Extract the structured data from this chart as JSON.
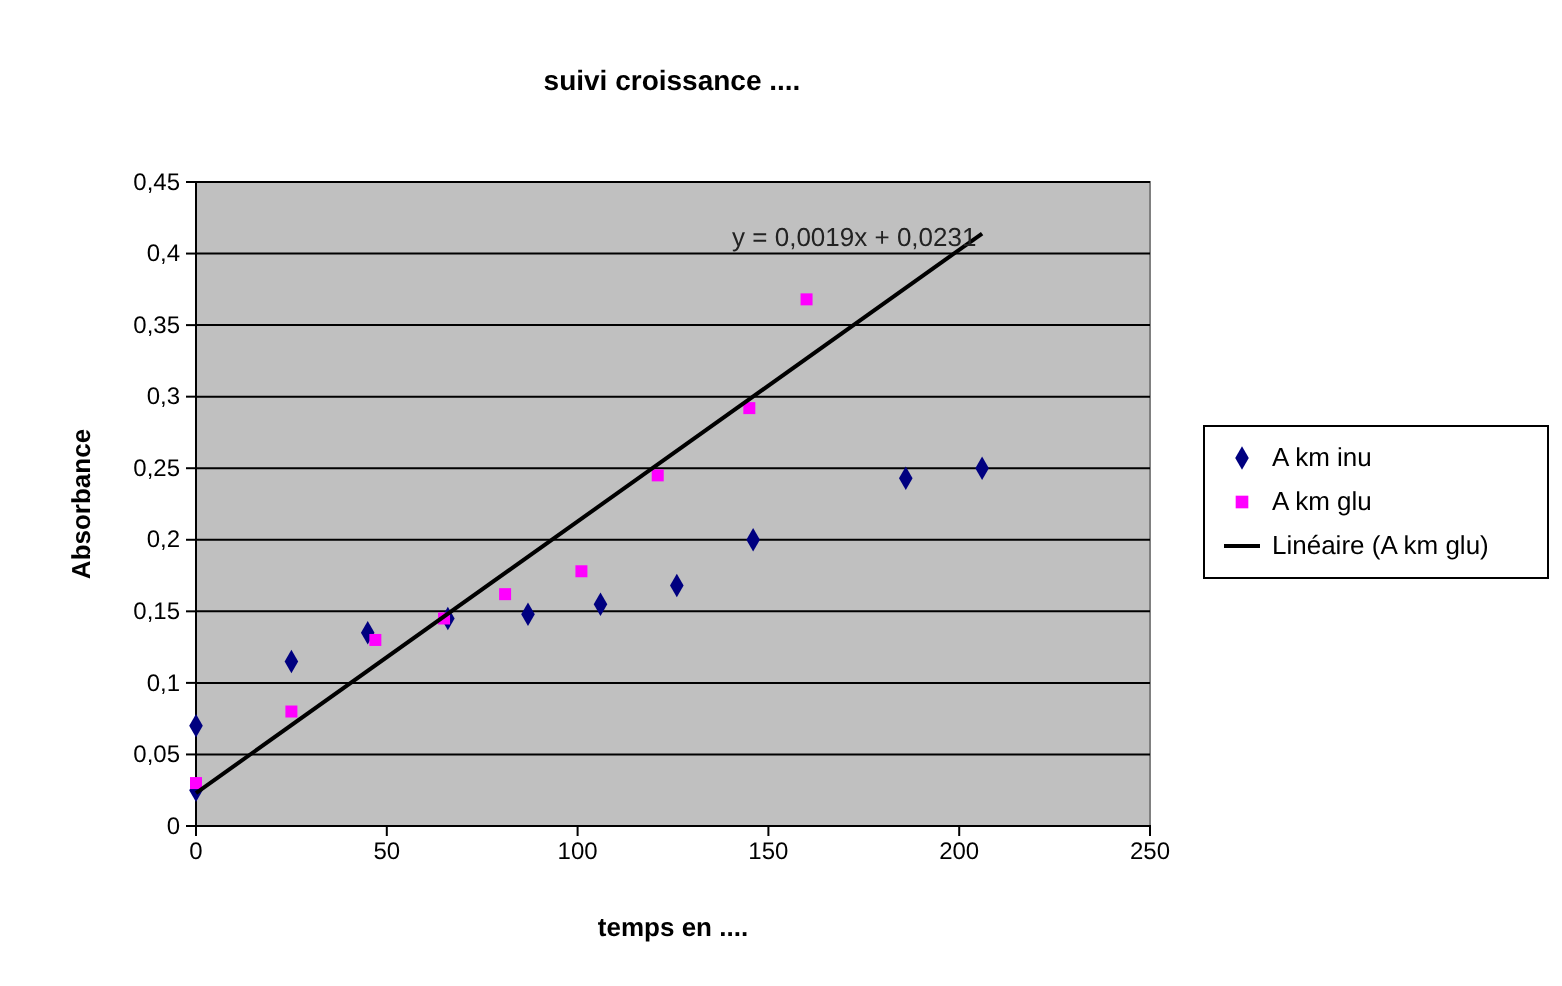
{
  "chart_data": {
    "type": "scatter",
    "title": "suivi croissance ....",
    "xlabel": "temps en ....",
    "ylabel": "Absorbance",
    "xlim": [
      0,
      250
    ],
    "xticks": [
      0,
      50,
      100,
      150,
      200,
      250
    ],
    "ylim": [
      0,
      0.45
    ],
    "yticks": [
      {
        "value": 0,
        "label": "0"
      },
      {
        "value": 0.05,
        "label": "0,05"
      },
      {
        "value": 0.1,
        "label": "0,1"
      },
      {
        "value": 0.15,
        "label": "0,15"
      },
      {
        "value": 0.2,
        "label": "0,2"
      },
      {
        "value": 0.25,
        "label": "0,25"
      },
      {
        "value": 0.3,
        "label": "0,3"
      },
      {
        "value": 0.35,
        "label": "0,35"
      },
      {
        "value": 0.4,
        "label": "0,4"
      },
      {
        "value": 0.45,
        "label": "0,45"
      }
    ],
    "grid": "y",
    "legend": "right",
    "series": [
      {
        "name": "A km inu",
        "color": "#000080",
        "marker": "diamond",
        "x": [
          0,
          0,
          25,
          45,
          66,
          87,
          106,
          126,
          146,
          186,
          206
        ],
        "values": [
          0.025,
          0.07,
          0.115,
          0.135,
          0.145,
          0.148,
          0.155,
          0.168,
          0.2,
          0.243,
          0.25
        ]
      },
      {
        "name": "A km glu",
        "color": "#ff00ff",
        "marker": "square",
        "x": [
          0,
          25,
          47,
          65,
          81,
          101,
          121,
          145,
          160
        ],
        "values": [
          0.03,
          0.08,
          0.13,
          0.145,
          0.162,
          0.178,
          0.245,
          0.292,
          0.368
        ]
      },
      {
        "name": "Linéaire (A km glu)",
        "type": "line",
        "color": "#000000",
        "marker": "none",
        "x": [
          0,
          206
        ],
        "values": [
          0.023,
          0.414
        ]
      }
    ],
    "annotations": [
      "y = 0,0019x + 0,0231"
    ]
  }
}
